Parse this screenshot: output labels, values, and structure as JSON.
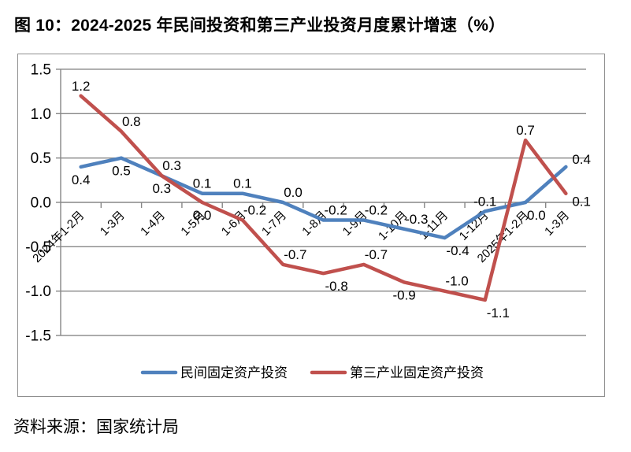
{
  "figure": {
    "title": "图 10：2024-2025 年民间投资和第三产业投资月度累计增速（%）",
    "source": "资料来源：国家统计局"
  },
  "chart_data": {
    "type": "line",
    "title": "图 10：2024-2025 年民间投资和第三产业投资月度累计增速（%）",
    "categories": [
      "2024年1-2月",
      "1-3月",
      "1-4月",
      "1-5月",
      "1-6月",
      "1-7月",
      "1-8月",
      "1-9月",
      "1-10月",
      "1-11月",
      "1-12月",
      "2025年1-2月",
      "1-3月"
    ],
    "series": [
      {
        "name": "民间固定资产投资",
        "color": "#4F81BD",
        "values": [
          0.4,
          0.5,
          0.3,
          0.1,
          0.1,
          0.0,
          -0.2,
          -0.2,
          -0.3,
          -0.4,
          -0.1,
          0.0,
          0.4
        ],
        "label_positions": [
          "below",
          "below",
          "below",
          "above",
          "above",
          "above-right",
          "above-right",
          "above-right",
          "above-right",
          "below-right",
          "above",
          "below-right",
          "right-up"
        ]
      },
      {
        "name": "第三产业固定资产投资",
        "color": "#C0504D",
        "values": [
          1.2,
          0.8,
          0.3,
          0.0,
          -0.2,
          -0.7,
          -0.8,
          -0.7,
          -0.9,
          -1.0,
          -1.1,
          0.7,
          0.1
        ],
        "label_positions": [
          "above",
          "above-right",
          "above-right",
          "below",
          "above-right",
          "above-right",
          "below-right",
          "above-right",
          "below",
          "above-right",
          "below-right",
          "above",
          "right-down"
        ]
      }
    ],
    "ylim": [
      -1.5,
      1.5
    ],
    "ytick_step": 0.5,
    "ytick_labels": [
      "1.5",
      "1.0",
      "0.5",
      "0.0",
      "-0.5",
      "-1.0",
      "-1.5"
    ],
    "xlabel": "",
    "ylabel": "",
    "grid": true,
    "data_labels": true,
    "label_decimals": 1,
    "legend_position": "bottom",
    "axis_color": "#878787",
    "background_color": "#ffffff"
  }
}
